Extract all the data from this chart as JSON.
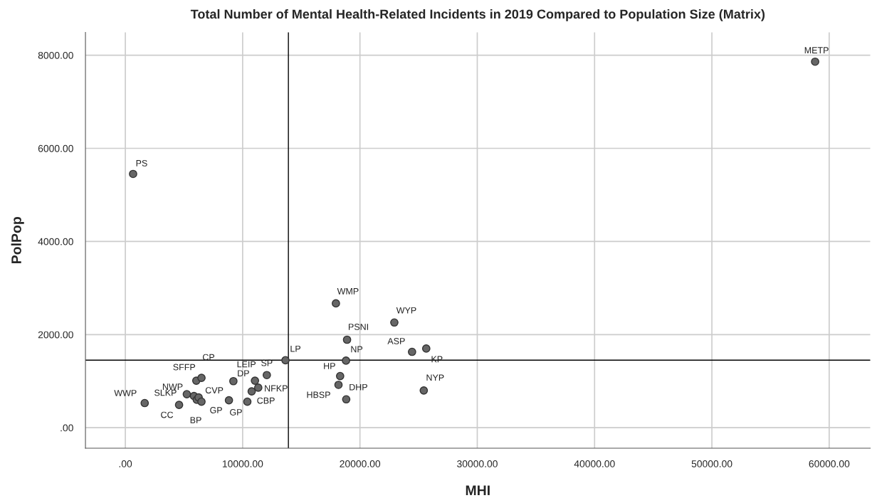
{
  "chart_data": {
    "type": "scatter",
    "title": "Total Number of Mental Health-Related Incidents in 2019 Compared to Population Size (Matrix)",
    "xlabel": "MHI",
    "ylabel": "PolPop",
    "x": [
      660,
      1650,
      4580,
      5240,
      5850,
      6090,
      6250,
      6490,
      6050,
      6490,
      8830,
      9210,
      10400,
      10770,
      11050,
      11330,
      12060,
      13650,
      17950,
      18900,
      18810,
      18310,
      18170,
      18830,
      22930,
      24440,
      25650,
      25440,
      58800
    ],
    "values": [
      5450,
      530,
      490,
      720,
      680,
      600,
      650,
      560,
      1010,
      1070,
      590,
      1000,
      560,
      780,
      1010,
      860,
      1130,
      1450,
      2670,
      1890,
      1440,
      1110,
      920,
      610,
      2260,
      1630,
      1700,
      800,
      7860
    ],
    "color": "#666666",
    "marker": "circle",
    "grid": true,
    "xlim": [
      -3400,
      63500
    ],
    "ylim": [
      -440,
      8490
    ],
    "xticks": [
      {
        "value": 0,
        "label": ".00"
      },
      {
        "value": 10000,
        "label": "10000.00"
      },
      {
        "value": 20000,
        "label": "20000.00"
      },
      {
        "value": 30000,
        "label": "30000.00"
      },
      {
        "value": 40000,
        "label": "40000.00"
      },
      {
        "value": 50000,
        "label": "50000.00"
      },
      {
        "value": 60000,
        "label": "60000.00"
      }
    ],
    "yticks": [
      {
        "value": 0,
        "label": ".00"
      },
      {
        "value": 2000,
        "label": "2000.00"
      },
      {
        "value": 4000,
        "label": "4000.00"
      },
      {
        "value": 6000,
        "label": "6000.00"
      },
      {
        "value": 8000,
        "label": "8000.00"
      }
    ],
    "ref_lines": [
      {
        "axis": "x",
        "value": 13900,
        "color": "#000000"
      },
      {
        "axis": "y",
        "value": 1450,
        "color": "#000000"
      }
    ],
    "annotations": [
      {
        "text": "PS",
        "x": 660,
        "y": 5450
      },
      {
        "text": "WWP",
        "x": 1650,
        "y": 530
      },
      {
        "text": "CC",
        "x": 4580,
        "y": 490
      },
      {
        "text": "SLKP",
        "x": 5240,
        "y": 720
      },
      {
        "text": "NWP",
        "x": 5850,
        "y": 680
      },
      {
        "text": "CVP",
        "x": 6250,
        "y": 650
      },
      {
        "text": "BP",
        "x": 6490,
        "y": 560
      },
      {
        "text": "SFFP",
        "x": 6050,
        "y": 1010
      },
      {
        "text": "CP",
        "x": 6490,
        "y": 1070
      },
      {
        "text": "GP",
        "x": 8830,
        "y": 590
      },
      {
        "text": "DP",
        "x": 9210,
        "y": 1000
      },
      {
        "text": "GP",
        "x": 10400,
        "y": 560
      },
      {
        "text": "CBP",
        "x": 10770,
        "y": 780
      },
      {
        "text": "LEIP",
        "x": 11050,
        "y": 1010
      },
      {
        "text": "NFKP",
        "x": 11330,
        "y": 860
      },
      {
        "text": "SP",
        "x": 12060,
        "y": 1130
      },
      {
        "text": "LP",
        "x": 13650,
        "y": 1450
      },
      {
        "text": "WMP",
        "x": 17950,
        "y": 2670
      },
      {
        "text": "PSNI",
        "x": 18900,
        "y": 1890
      },
      {
        "text": "NP",
        "x": 18810,
        "y": 1440
      },
      {
        "text": "HP",
        "x": 18310,
        "y": 1110
      },
      {
        "text": "HBSP",
        "x": 18170,
        "y": 920
      },
      {
        "text": "DHP",
        "x": 18830,
        "y": 610
      },
      {
        "text": "WYP",
        "x": 22930,
        "y": 2260
      },
      {
        "text": "ASP",
        "x": 24440,
        "y": 1630
      },
      {
        "text": "KP",
        "x": 25650,
        "y": 1700
      },
      {
        "text": "NYP",
        "x": 25440,
        "y": 800
      },
      {
        "text": "METP",
        "x": 58800,
        "y": 7860
      }
    ]
  }
}
